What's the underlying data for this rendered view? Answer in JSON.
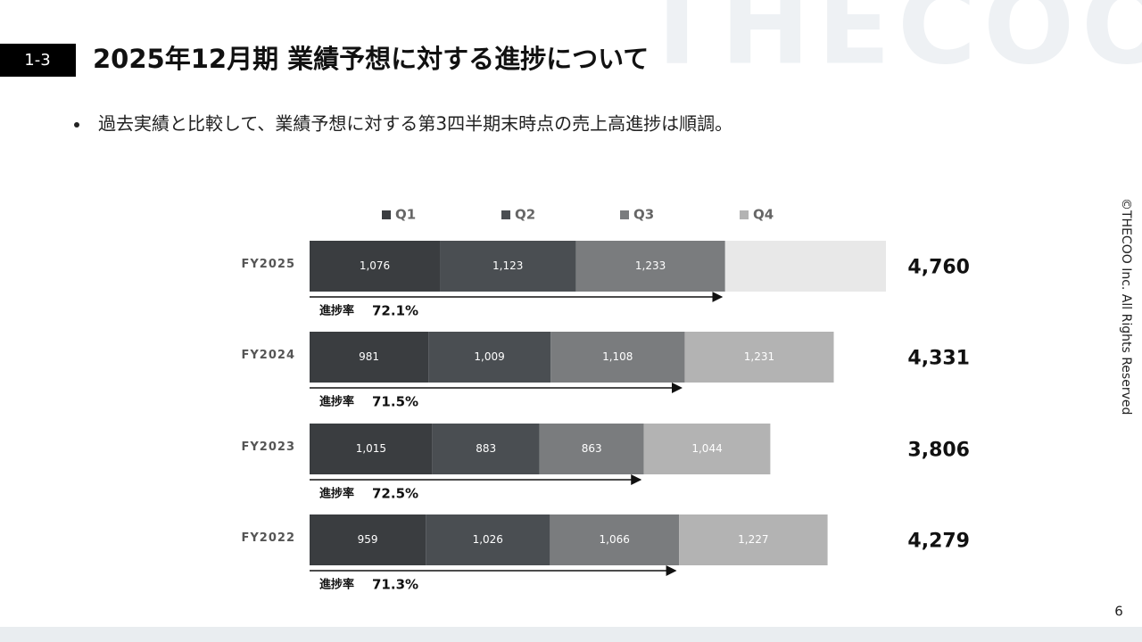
{
  "page": {
    "section": "1-3",
    "watermark": "THECOO",
    "title": "2025年12月期 業績予想に対する進捗について",
    "bullet": "過去実績と比較して、業績予想に対する第3四半期末時点の売上高進捗は順調。",
    "copyright": "©THECOO Inc. All Rights Reserved",
    "page_number": "6"
  },
  "chart_data": {
    "type": "stacked-bar-horizontal",
    "categories": [
      "FY2025",
      "FY2024",
      "FY2023",
      "FY2022"
    ],
    "series": [
      {
        "name": "Q1",
        "color": "#3a3d40",
        "values": [
          1076,
          981,
          1015,
          959
        ],
        "value_labels": [
          "1,076",
          "981",
          "1,015",
          "959"
        ]
      },
      {
        "name": "Q2",
        "color": "#4a4e52",
        "values": [
          1123,
          1009,
          883,
          1026
        ],
        "value_labels": [
          "1,123",
          "1,009",
          "883",
          "1,026"
        ]
      },
      {
        "name": "Q3",
        "color": "#7a7c7e",
        "values": [
          1233,
          1108,
          863,
          1066
        ],
        "value_labels": [
          "1,233",
          "1,108",
          "863",
          "1,066"
        ]
      },
      {
        "name": "Q4",
        "color": "#b3b3b3",
        "colors": [
          "#e8e8e8",
          "#b3b3b3",
          "#b3b3b3",
          "#b3b3b3"
        ],
        "values": [
          1328,
          1231,
          1044,
          1227
        ],
        "value_labels": [
          null,
          "1,231",
          "1,044",
          "1,227"
        ]
      }
    ],
    "totals": [
      4760,
      4331,
      3806,
      4279
    ],
    "total_labels": [
      "4,760",
      "4,331",
      "3,806",
      "4,279"
    ],
    "progress_label": "進捗率",
    "progress": [
      72.1,
      71.5,
      72.5,
      71.3
    ],
    "progress_labels": [
      "72.1%",
      "71.5%",
      "72.5%",
      "71.3%"
    ]
  }
}
